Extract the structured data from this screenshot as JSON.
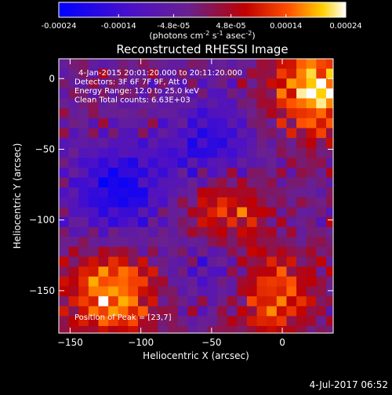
{
  "colorbar": {
    "tick_labels": [
      "-0.00024",
      "-0.00014",
      "-4.8e-05",
      "4.8e-05",
      "0.00014",
      "0.00024"
    ],
    "tick_values": [
      -0.00024,
      -0.00014,
      -4.8e-05,
      4.8e-05,
      0.00014,
      0.00024
    ],
    "range": [
      -0.00024,
      0.00024
    ],
    "units_label": "(photons cm",
    "units_exp1": "-2",
    "units_mid1": " s",
    "units_exp2": "-1",
    "units_mid2": " asec",
    "units_exp3": "-2",
    "units_end": ")",
    "colormap": "blue-purple-red-yellow-white"
  },
  "chart_data": {
    "type": "heatmap",
    "title": "Reconstructed RHESSI Image",
    "xlabel": "Heliocentric X (arcsec)",
    "ylabel": "Heliocentric Y (arcsec)",
    "xlim": [
      -158,
      36
    ],
    "ylim": [
      -180,
      14
    ],
    "xticks": [
      -150,
      -100,
      -50,
      0
    ],
    "yticks": [
      0,
      -50,
      -100,
      -150
    ],
    "xtick_labels": [
      "−150",
      "−100",
      "−50",
      "0"
    ],
    "ytick_labels": [
      "0",
      "−50",
      "−100",
      "−150"
    ],
    "annotations": [
      "4-Jan-2015 20:01:20.000 to 20:11:20.000",
      "Detectors: 3F 6F 7F 9F, Att 0",
      "Energy Range: 12.0 to 25.0 keV",
      "Clean    Total counts: 6.63E+03"
    ],
    "peak_label": "Position of Peak = [23,7]",
    "peak_position": [
      23,
      7
    ],
    "bright_regions": [
      {
        "x": 20,
        "y": -5,
        "level": 1.0
      },
      {
        "x": -45,
        "y": -95,
        "level": 0.85
      },
      {
        "x": -125,
        "y": -150,
        "level": 0.9
      },
      {
        "x": -10,
        "y": -150,
        "level": 0.7
      }
    ],
    "dim_regions": [
      {
        "x": -120,
        "y": -75,
        "level": -0.8
      },
      {
        "x": -55,
        "y": -45,
        "level": -0.6
      },
      {
        "x": -50,
        "y": -120,
        "level": -0.6
      }
    ]
  },
  "footer": {
    "timestamp": "4-Jul-2017 06:52"
  }
}
